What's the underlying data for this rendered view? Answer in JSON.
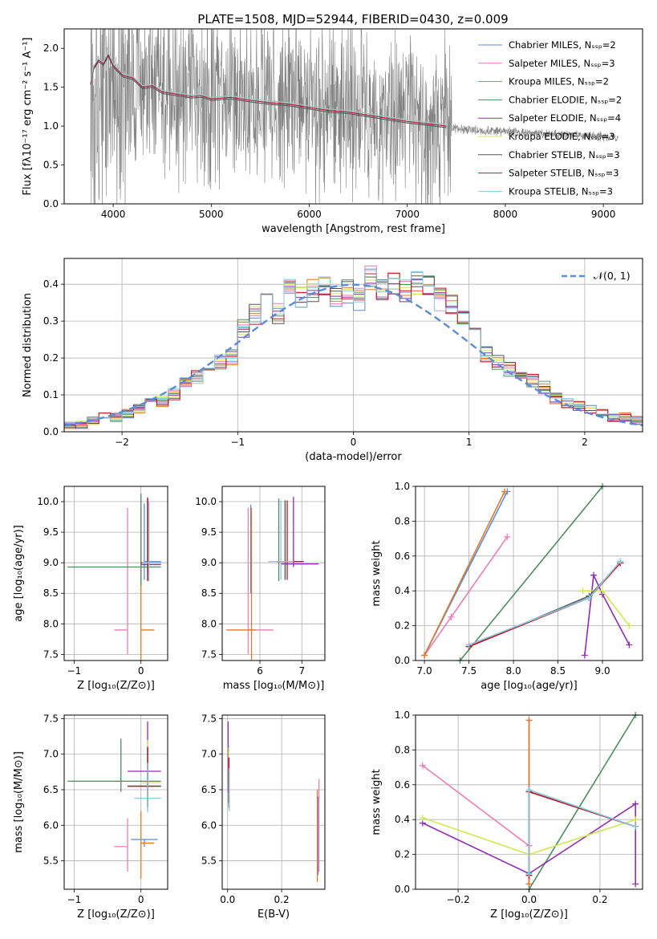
{
  "figure_title": "PLATE=1508, MJD=52944, FIBERID=0430, z=0.009",
  "colors": {
    "data": "#808080",
    "grid": "#b0b0b0",
    "gaussian": "#5a8cd8",
    "models": [
      "#5a8cd8",
      "#e87fb4",
      "#e07b2c",
      "#4f8a5e",
      "#8e2eb0",
      "#cfe855",
      "#555555",
      "#c0142a",
      "#87c9dc"
    ]
  },
  "chart_data": [
    {
      "type": "line",
      "panel": "spectrum",
      "title": "PLATE=1508, MJD=52944, FIBERID=0430, z=0.009",
      "xlabel": "wavelength [Angstrom, rest frame]",
      "ylabel": "Flux [fλ10⁻¹⁷ erg cm⁻² s⁻¹ A⁻¹]",
      "xlim": [
        3500,
        9400
      ],
      "ylim": [
        0,
        2.25
      ],
      "xticks": [
        4000,
        5000,
        6000,
        7000,
        8000,
        9000
      ],
      "yticks": [
        0.0,
        0.5,
        1.0,
        1.5,
        2.0
      ],
      "grid": false,
      "legend_position": "top-right",
      "legend": [
        "Chabrier MILES, N_SSP=2",
        "Salpeter MILES, N_SSP=3",
        "Kroupa MILES, N_SSP=2",
        "Chabrier ELODIE, N_SSP=2",
        "Salpeter ELODIE, N_SSP=4",
        "Kroupa ELODIE, N_SSP=3",
        "Chabrier STELIB, N_SSP=3",
        "Salpeter STELIB, N_SSP=3",
        "Kroupa STELIB, N_SSP=3"
      ],
      "observed": {
        "x_range": [
          3770,
          9150
        ],
        "continuum": [
          [
            3770,
            1.45
          ],
          [
            3850,
            1.55
          ],
          [
            3950,
            1.6
          ],
          [
            4100,
            1.55
          ],
          [
            4300,
            1.48
          ],
          [
            4500,
            1.45
          ],
          [
            4800,
            1.38
          ],
          [
            5200,
            1.35
          ],
          [
            5600,
            1.3
          ],
          [
            6000,
            1.22
          ],
          [
            6400,
            1.15
          ],
          [
            6800,
            1.08
          ],
          [
            7200,
            1.02
          ],
          [
            7600,
            0.96
          ],
          [
            8000,
            0.93
          ],
          [
            8400,
            0.9
          ],
          [
            8800,
            0.88
          ],
          [
            9150,
            0.86
          ]
        ]
      },
      "model_curve": [
        [
          3770,
          1.55
        ],
        [
          3800,
          1.75
        ],
        [
          3850,
          1.85
        ],
        [
          3900,
          1.8
        ],
        [
          3950,
          1.92
        ],
        [
          4000,
          1.78
        ],
        [
          4100,
          1.65
        ],
        [
          4200,
          1.62
        ],
        [
          4300,
          1.5
        ],
        [
          4400,
          1.52
        ],
        [
          4500,
          1.44
        ],
        [
          4600,
          1.42
        ],
        [
          4700,
          1.4
        ],
        [
          4800,
          1.38
        ],
        [
          4900,
          1.39
        ],
        [
          5000,
          1.35
        ],
        [
          5200,
          1.37
        ],
        [
          5400,
          1.33
        ],
        [
          5600,
          1.3
        ],
        [
          5800,
          1.28
        ],
        [
          6000,
          1.24
        ],
        [
          6200,
          1.2
        ],
        [
          6400,
          1.18
        ],
        [
          6600,
          1.14
        ],
        [
          6800,
          1.1
        ],
        [
          7000,
          1.06
        ],
        [
          7200,
          1.03
        ],
        [
          7400,
          1.0
        ]
      ]
    },
    {
      "type": "line",
      "panel": "residual-histogram",
      "xlabel": "(data-model)/error",
      "ylabel": "Normed distribution",
      "xlim": [
        -2.5,
        2.5
      ],
      "ylim": [
        0,
        0.47
      ],
      "xticks": [
        -2,
        -1,
        0,
        1,
        2
      ],
      "yticks": [
        0.0,
        0.1,
        0.2,
        0.3,
        0.4
      ],
      "grid": true,
      "legend_position": "top-right",
      "gaussian_label": "N(0,1)",
      "bin_edges": [
        -2.5,
        -2.4,
        -2.3,
        -2.2,
        -2.1,
        -2.0,
        -1.9,
        -1.8,
        -1.7,
        -1.6,
        -1.5,
        -1.4,
        -1.3,
        -1.2,
        -1.1,
        -1.0,
        -0.9,
        -0.8,
        -0.7,
        -0.6,
        -0.5,
        -0.4,
        -0.3,
        -0.2,
        -0.1,
        0.0,
        0.1,
        0.2,
        0.3,
        0.4,
        0.5,
        0.6,
        0.7,
        0.8,
        0.9,
        1.0,
        1.1,
        1.2,
        1.3,
        1.4,
        1.5,
        1.6,
        1.7,
        1.8,
        1.9,
        2.0,
        2.1,
        2.2,
        2.3,
        2.4,
        2.5
      ],
      "hist_base": [
        0.02,
        0.02,
        0.03,
        0.04,
        0.04,
        0.05,
        0.06,
        0.08,
        0.08,
        0.1,
        0.13,
        0.15,
        0.17,
        0.19,
        0.2,
        0.28,
        0.32,
        0.36,
        0.32,
        0.38,
        0.37,
        0.38,
        0.39,
        0.37,
        0.38,
        0.36,
        0.42,
        0.38,
        0.4,
        0.38,
        0.4,
        0.4,
        0.36,
        0.34,
        0.3,
        0.29,
        0.21,
        0.19,
        0.17,
        0.15,
        0.14,
        0.12,
        0.09,
        0.08,
        0.07,
        0.06,
        0.05,
        0.04,
        0.04,
        0.03
      ]
    },
    {
      "type": "scatter",
      "panel": "age-vs-Z",
      "xlabel": "Z [log₁₀(Z/Z⊙)]",
      "ylabel": "age  [log₁₀(age/yr)]",
      "xlim": [
        -1.15,
        0.4
      ],
      "ylim": [
        7.4,
        10.25
      ],
      "xticks": [
        -1,
        0
      ],
      "yticks": [
        7.5,
        8.0,
        8.5,
        9.0,
        9.5,
        10.0
      ],
      "grid": true,
      "errorbars": [
        {
          "model": 0,
          "x": 0.05,
          "xerr": [
            0.0,
            0.25
          ],
          "y": 9.02,
          "yerr": [
            0.3,
            0.95
          ]
        },
        {
          "model": 1,
          "x": -0.2,
          "xerr": [
            0.2,
            0.0
          ],
          "y": 7.9,
          "yerr": [
            0.4,
            2.0
          ]
        },
        {
          "model": 2,
          "x": 0.0,
          "xerr": [
            0.0,
            0.2
          ],
          "y": 7.9,
          "yerr": [
            0.5,
            2.0
          ]
        },
        {
          "model": 3,
          "x": 0.0,
          "xerr": [
            1.1,
            0.3
          ],
          "y": 8.93,
          "yerr": [
            0.3,
            1.2
          ]
        },
        {
          "model": 4,
          "x": 0.1,
          "xerr": [
            0.1,
            0.2
          ],
          "y": 8.97,
          "yerr": [
            0.15,
            1.1
          ]
        },
        {
          "model": 5,
          "x": 0.1,
          "xerr": [
            0.1,
            0.2
          ],
          "y": 9.0,
          "yerr": [
            0.3,
            1.0
          ]
        },
        {
          "model": 6,
          "x": 0.1,
          "xerr": [
            0.1,
            0.2
          ],
          "y": 9.0,
          "yerr": [
            0.3,
            1.05
          ]
        },
        {
          "model": 7,
          "x": 0.1,
          "xerr": [
            0.1,
            0.2
          ],
          "y": 9.0,
          "yerr": [
            0.3,
            1.05
          ]
        },
        {
          "model": 8,
          "x": 0.12,
          "xerr": [
            0.1,
            0.2
          ],
          "y": 9.0,
          "yerr": [
            0.3,
            1.0
          ]
        }
      ]
    },
    {
      "type": "scatter",
      "panel": "age-vs-mass",
      "xlabel": "mass [log₁₀(M/M⊙)]",
      "ylabel": "",
      "xlim": [
        5.1,
        7.55
      ],
      "ylim": [
        7.4,
        10.25
      ],
      "xticks": [
        6,
        7
      ],
      "yticks": [
        7.5,
        8.0,
        8.5,
        9.0,
        9.5,
        10.0
      ],
      "grid": true,
      "errorbars": [
        {
          "model": 0,
          "x": 5.78,
          "xerr": [
            0.0,
            0.0
          ],
          "y": 9.0,
          "yerr": [
            0.5,
            0.95
          ]
        },
        {
          "model": 1,
          "x": 5.72,
          "xerr": [
            0.0,
            0.6
          ],
          "y": 7.9,
          "yerr": [
            0.4,
            2.0
          ]
        },
        {
          "model": 2,
          "x": 5.8,
          "xerr": [
            0.6,
            0.1
          ],
          "y": 7.9,
          "yerr": [
            0.5,
            2.0
          ]
        },
        {
          "model": 3,
          "x": 6.45,
          "xerr": [
            0.0,
            0.0
          ],
          "y": 9.0,
          "yerr": [
            0.3,
            1.05
          ]
        },
        {
          "model": 4,
          "x": 6.8,
          "xerr": [
            0.3,
            0.6
          ],
          "y": 8.98,
          "yerr": [
            0.05,
            1.1
          ]
        },
        {
          "model": 5,
          "x": 6.6,
          "xerr": [
            0.2,
            0.2
          ],
          "y": 9.02,
          "yerr": [
            0.3,
            1.0
          ]
        },
        {
          "model": 6,
          "x": 6.6,
          "xerr": [
            0.2,
            0.4
          ],
          "y": 9.02,
          "yerr": [
            0.3,
            1.0
          ]
        },
        {
          "model": 7,
          "x": 6.65,
          "xerr": [
            0.2,
            0.4
          ],
          "y": 9.02,
          "yerr": [
            0.3,
            1.0
          ]
        },
        {
          "model": 8,
          "x": 6.5,
          "xerr": [
            0.3,
            0.3
          ],
          "y": 9.02,
          "yerr": [
            0.3,
            1.0
          ]
        }
      ]
    },
    {
      "type": "line",
      "panel": "mass-weight-vs-age",
      "xlabel": "age  [log₁₀(age/yr)]",
      "ylabel": "mass weight",
      "xlim": [
        6.9,
        9.45
      ],
      "ylim": [
        0,
        1.0
      ],
      "xticks": [
        7.0,
        7.5,
        8.0,
        8.5,
        9.0
      ],
      "yticks": [
        0.0,
        0.2,
        0.4,
        0.6,
        0.8,
        1.0
      ],
      "grid": true,
      "series": [
        {
          "model": 0,
          "x": [
            7.0,
            7.93
          ],
          "y": [
            0.03,
            0.97
          ]
        },
        {
          "model": 1,
          "x": [
            7.0,
            7.3,
            7.93
          ],
          "y": [
            0.03,
            0.25,
            0.71
          ]
        },
        {
          "model": 2,
          "x": [
            7.0,
            7.9
          ],
          "y": [
            0.03,
            0.97
          ]
        },
        {
          "model": 3,
          "x": [
            7.4,
            9.0
          ],
          "y": [
            0.0,
            1.0
          ]
        },
        {
          "model": 4,
          "x": [
            8.8,
            8.9,
            9.0,
            9.3
          ],
          "y": [
            0.03,
            0.49,
            0.38,
            0.09
          ]
        },
        {
          "model": 5,
          "x": [
            8.78,
            9.0,
            9.3
          ],
          "y": [
            0.4,
            0.4,
            0.2
          ]
        },
        {
          "model": 6,
          "x": [
            7.5,
            8.85,
            9.2
          ],
          "y": [
            0.08,
            0.37,
            0.56
          ]
        },
        {
          "model": 7,
          "x": [
            7.5,
            8.85,
            9.2
          ],
          "y": [
            0.08,
            0.36,
            0.56
          ]
        },
        {
          "model": 8,
          "x": [
            7.5,
            8.85,
            9.2
          ],
          "y": [
            0.09,
            0.36,
            0.57
          ]
        }
      ]
    },
    {
      "type": "scatter",
      "panel": "mass-vs-Z",
      "xlabel": "Z [log₁₀(Z/Z⊙)]",
      "ylabel": "mass [log₁₀(M/M⊙)]",
      "xlim": [
        -1.15,
        0.4
      ],
      "ylim": [
        5.1,
        7.55
      ],
      "xticks": [
        -1,
        0
      ],
      "yticks": [
        5.5,
        6.0,
        6.5,
        7.0,
        7.5
      ],
      "grid": true,
      "errorbars": [
        {
          "model": 0,
          "x": 0.05,
          "xerr": [
            0.2,
            0.2
          ],
          "y": 5.8,
          "yerr": [
            0.1,
            0.0
          ]
        },
        {
          "model": 1,
          "x": -0.2,
          "xerr": [
            0.2,
            0.0
          ],
          "y": 5.7,
          "yerr": [
            0.35,
            0.4
          ]
        },
        {
          "model": 2,
          "x": 0.0,
          "xerr": [
            0.0,
            0.2
          ],
          "y": 5.75,
          "yerr": [
            0.5,
            0.45
          ]
        },
        {
          "model": 3,
          "x": -0.3,
          "xerr": [
            0.8,
            0.6
          ],
          "y": 6.62,
          "yerr": [
            0.15,
            0.6
          ]
        },
        {
          "model": 4,
          "x": 0.1,
          "xerr": [
            0.3,
            0.2
          ],
          "y": 6.76,
          "yerr": [
            0.2,
            0.7
          ]
        },
        {
          "model": 5,
          "x": 0.1,
          "xerr": [
            0.1,
            0.2
          ],
          "y": 6.6,
          "yerr": [
            0.3,
            0.6
          ]
        },
        {
          "model": 6,
          "x": 0.1,
          "xerr": [
            0.3,
            0.2
          ],
          "y": 6.55,
          "yerr": [
            0.3,
            0.55
          ]
        },
        {
          "model": 7,
          "x": 0.1,
          "xerr": [
            0.3,
            0.2
          ],
          "y": 6.55,
          "yerr": [
            0.3,
            0.55
          ]
        },
        {
          "model": 8,
          "x": 0.1,
          "xerr": [
            0.2,
            0.2
          ],
          "y": 6.38,
          "yerr": [
            0.2,
            0.5
          ]
        }
      ]
    },
    {
      "type": "scatter",
      "panel": "mass-vs-ebv",
      "xlabel": "E(B-V)",
      "ylabel": "",
      "xlim": [
        -0.02,
        0.36
      ],
      "ylim": [
        5.1,
        7.55
      ],
      "xticks": [
        0.0,
        0.2
      ],
      "yticks": [
        5.5,
        6.0,
        6.5,
        7.0,
        7.5
      ],
      "grid": true,
      "errorbars": [
        {
          "model": 0,
          "x": 0.335,
          "xerr": [
            0.0,
            0.0
          ],
          "y": 5.8,
          "yerr": [
            0.5,
            0.6
          ]
        },
        {
          "model": 1,
          "x": 0.338,
          "xerr": [
            0.0,
            0.0
          ],
          "y": 5.9,
          "yerr": [
            0.55,
            0.75
          ]
        },
        {
          "model": 2,
          "x": 0.332,
          "xerr": [
            0.0,
            0.0
          ],
          "y": 5.75,
          "yerr": [
            0.55,
            0.75
          ]
        },
        {
          "model": 3,
          "x": 0.003,
          "xerr": [
            0.0,
            0.0
          ],
          "y": 6.62,
          "yerr": [
            0.3,
            0.5
          ]
        },
        {
          "model": 4,
          "x": 0.002,
          "xerr": [
            0.0,
            0.0
          ],
          "y": 6.76,
          "yerr": [
            0.3,
            0.7
          ]
        },
        {
          "model": 5,
          "x": 0.004,
          "xerr": [
            0.0,
            0.0
          ],
          "y": 6.6,
          "yerr": [
            0.3,
            0.5
          ]
        },
        {
          "model": 6,
          "x": 0.005,
          "xerr": [
            0.0,
            0.0
          ],
          "y": 6.5,
          "yerr": [
            0.25,
            0.45
          ]
        },
        {
          "model": 7,
          "x": 0.005,
          "xerr": [
            0.0,
            0.0
          ],
          "y": 6.5,
          "yerr": [
            0.25,
            0.45
          ]
        },
        {
          "model": 8,
          "x": 0.006,
          "xerr": [
            0.0,
            0.0
          ],
          "y": 6.4,
          "yerr": [
            0.2,
            0.4
          ]
        }
      ]
    },
    {
      "type": "line",
      "panel": "mass-weight-vs-Z",
      "xlabel": "Z [log₁₀(Z/Z⊙)]",
      "ylabel": "mass weight",
      "xlim": [
        -0.32,
        0.32
      ],
      "ylim": [
        0,
        1.0
      ],
      "xticks": [
        -0.2,
        0.0,
        0.2
      ],
      "yticks": [
        0.0,
        0.2,
        0.4,
        0.6,
        0.8,
        1.0
      ],
      "grid": true,
      "series": [
        {
          "model": 0,
          "x": [
            0.0,
            0.0
          ],
          "y": [
            0.03,
            0.97
          ]
        },
        {
          "model": 1,
          "x": [
            -0.3,
            0.0,
            0.0
          ],
          "y": [
            0.71,
            0.25,
            0.03
          ]
        },
        {
          "model": 2,
          "x": [
            0.0,
            0.0
          ],
          "y": [
            0.03,
            0.97
          ]
        },
        {
          "model": 3,
          "x": [
            0.0,
            0.3
          ],
          "y": [
            0.0,
            1.0
          ]
        },
        {
          "model": 4,
          "x": [
            -0.3,
            0.0,
            0.3,
            0.3
          ],
          "y": [
            0.38,
            0.09,
            0.49,
            0.03
          ]
        },
        {
          "model": 5,
          "x": [
            -0.3,
            0.0,
            0.3
          ],
          "y": [
            0.41,
            0.2,
            0.4
          ]
        },
        {
          "model": 6,
          "x": [
            0.0,
            0.0,
            0.3
          ],
          "y": [
            0.08,
            0.56,
            0.36
          ]
        },
        {
          "model": 7,
          "x": [
            0.0,
            0.0,
            0.3
          ],
          "y": [
            0.08,
            0.56,
            0.36
          ]
        },
        {
          "model": 8,
          "x": [
            0.0,
            0.0,
            0.3
          ],
          "y": [
            0.09,
            0.57,
            0.36
          ]
        }
      ]
    }
  ]
}
